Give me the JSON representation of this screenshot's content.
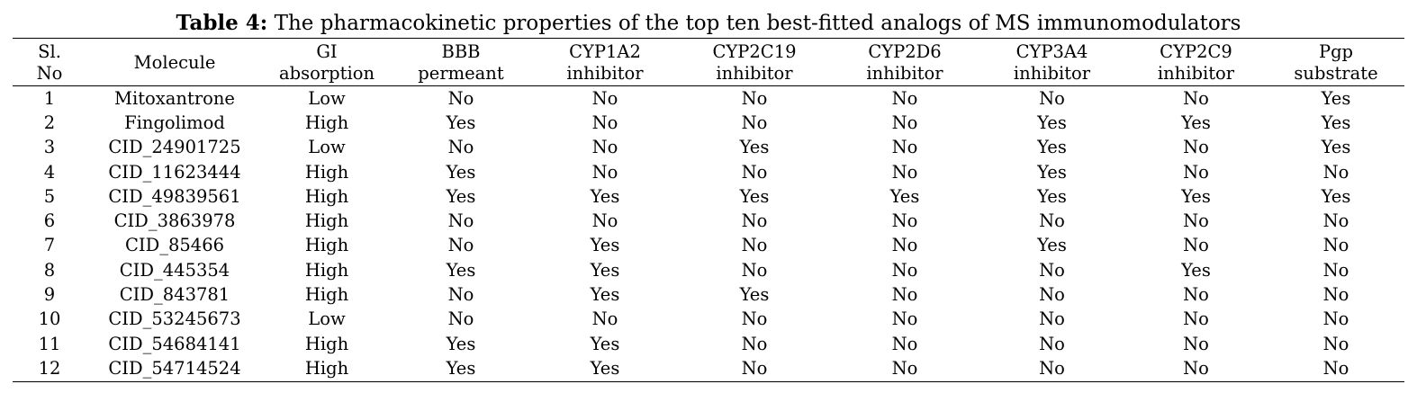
{
  "caption": {
    "label": "Table 4:",
    "text": " The pharmacokinetic properties of the top ten best-fitted analogs of MS immunomodulators"
  },
  "columns": [
    {
      "line1": "Sl.",
      "line2": "No"
    },
    {
      "line1": "Molecule",
      "line2": ""
    },
    {
      "line1": "GI",
      "line2": "absorption"
    },
    {
      "line1": "BBB",
      "line2": "permeant"
    },
    {
      "line1": "CYP1A2",
      "line2": "inhibitor"
    },
    {
      "line1": "CYP2C19",
      "line2": "inhibitor"
    },
    {
      "line1": "CYP2D6",
      "line2": "inhibitor"
    },
    {
      "line1": "CYP3A4",
      "line2": "inhibitor"
    },
    {
      "line1": "CYP2C9",
      "line2": "inhibitor"
    },
    {
      "line1": "Pgp",
      "line2": "substrate"
    }
  ],
  "rows": [
    [
      "1",
      "Mitoxantrone",
      "Low",
      "No",
      "No",
      "No",
      "No",
      "No",
      "No",
      "Yes"
    ],
    [
      "2",
      "Fingolimod",
      "High",
      "Yes",
      "No",
      "No",
      "No",
      "Yes",
      "Yes",
      "Yes"
    ],
    [
      "3",
      "CID_24901725",
      "Low",
      "No",
      "No",
      "Yes",
      "No",
      "Yes",
      "No",
      "Yes"
    ],
    [
      "4",
      "CID_11623444",
      "High",
      "Yes",
      "No",
      "No",
      "No",
      "Yes",
      "No",
      "No"
    ],
    [
      "5",
      "CID_49839561",
      "High",
      "Yes",
      "Yes",
      "Yes",
      "Yes",
      "Yes",
      "Yes",
      "Yes"
    ],
    [
      "6",
      "CID_3863978",
      "High",
      "No",
      "No",
      "No",
      "No",
      "No",
      "No",
      "No"
    ],
    [
      "7",
      "CID_85466",
      "High",
      "No",
      "Yes",
      "No",
      "No",
      "Yes",
      "No",
      "No"
    ],
    [
      "8",
      "CID_445354",
      "High",
      "Yes",
      "Yes",
      "No",
      "No",
      "No",
      "Yes",
      "No"
    ],
    [
      "9",
      "CID_843781",
      "High",
      "No",
      "Yes",
      "Yes",
      "No",
      "No",
      "No",
      "No"
    ],
    [
      "10",
      "CID_53245673",
      "Low",
      "No",
      "No",
      "No",
      "No",
      "No",
      "No",
      "No"
    ],
    [
      "11",
      "CID_54684141",
      "High",
      "Yes",
      "Yes",
      "No",
      "No",
      "No",
      "No",
      "No"
    ],
    [
      "12",
      "CID_54714524",
      "High",
      "Yes",
      "Yes",
      "No",
      "No",
      "No",
      "No",
      "No"
    ]
  ]
}
